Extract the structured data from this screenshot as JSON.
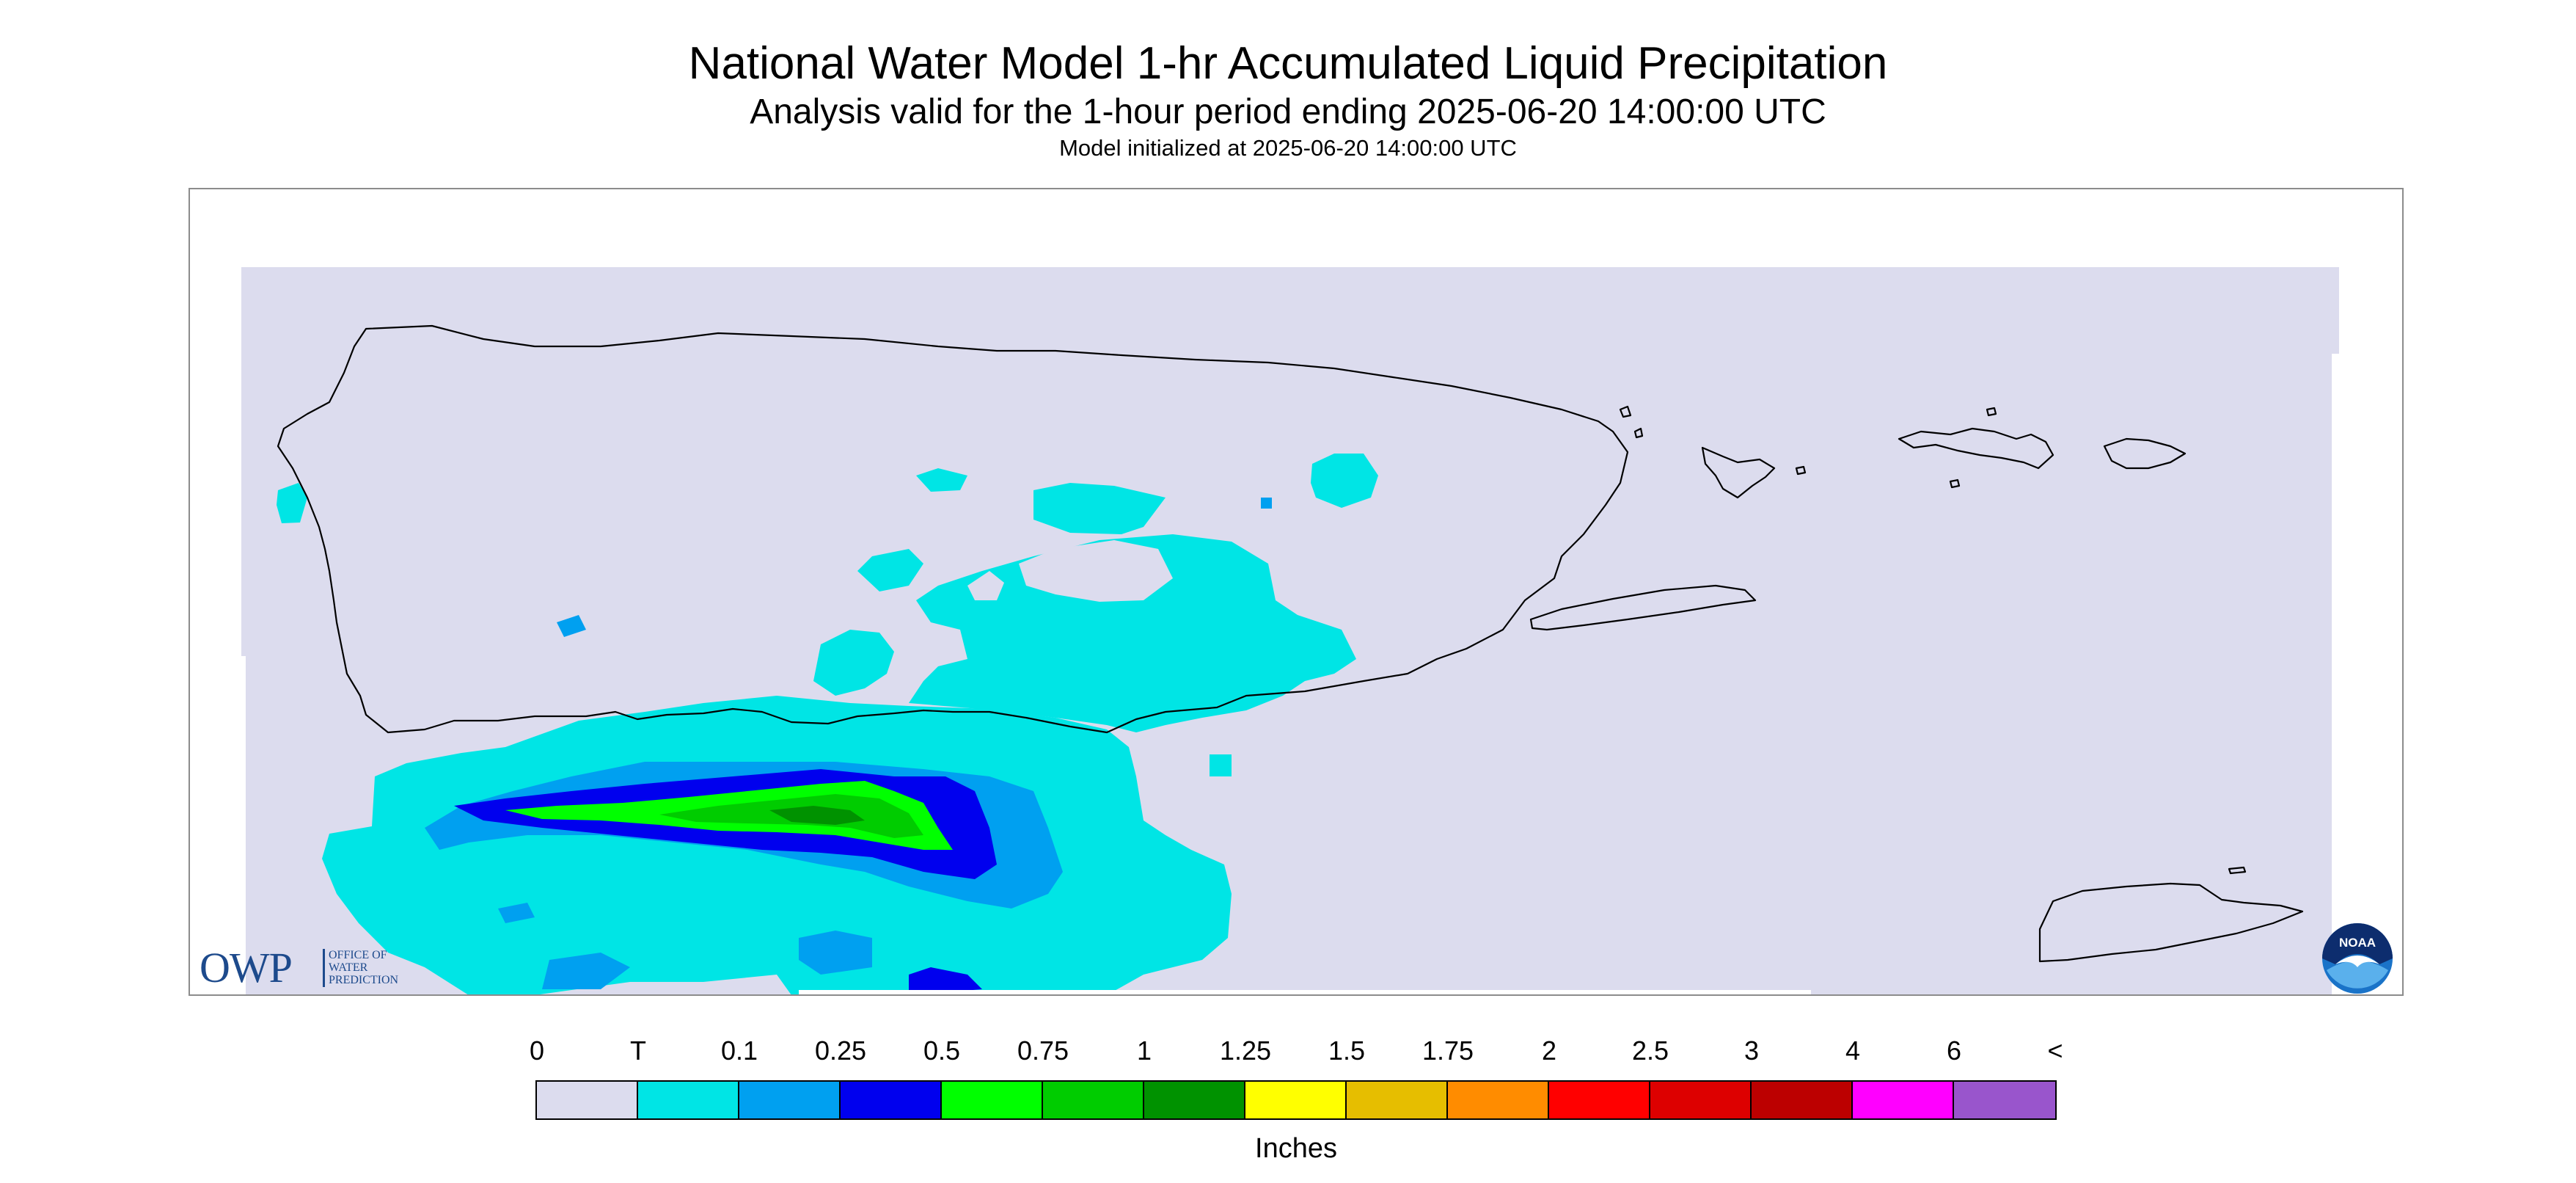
{
  "header": {
    "title": "National Water Model 1-hr Accumulated Liquid Precipitation",
    "subtitle": "Analysis valid for the 1-hour period ending 2025-06-20 14:00:00 UTC",
    "initialized": "Model initialized at 2025-06-20 14:00:00 UTC"
  },
  "logos": {
    "owp_mark": "OWP",
    "owp_text": "OFFICE OF WATER PREDICTION",
    "noaa_text": "NOAA"
  },
  "legend": {
    "unit": "Inches",
    "labels": [
      "0",
      "T",
      "0.1",
      "0.25",
      "0.5",
      "0.75",
      "1",
      "1.25",
      "1.5",
      "1.75",
      "2",
      "2.5",
      "3",
      "4",
      "6",
      "<"
    ],
    "colors": [
      "#dcdcee",
      "#00e5e5",
      "#00a0f0",
      "#0000ee",
      "#00ff00",
      "#00cc00",
      "#009200",
      "#ffff00",
      "#e6be00",
      "#ff8c00",
      "#ff0000",
      "#dd0000",
      "#bc0000",
      "#ff00ff",
      "#9955cc"
    ]
  },
  "map": {
    "background_color": "#dcdcee",
    "coastline_color": "#000000",
    "precip_levels": [
      {
        "threshold": "T",
        "color": "#00e5e5"
      },
      {
        "threshold": "0.1",
        "color": "#00a0f0"
      },
      {
        "threshold": "0.25",
        "color": "#0000ee"
      },
      {
        "threshold": "0.5",
        "color": "#00ff00"
      },
      {
        "threshold": "0.75",
        "color": "#00cc00"
      },
      {
        "threshold": "1",
        "color": "#009200"
      }
    ]
  }
}
